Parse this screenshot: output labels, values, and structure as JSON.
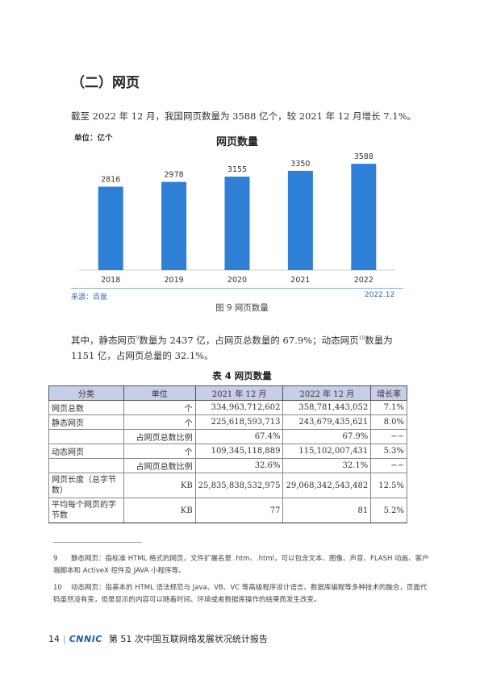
{
  "heading": "（二）网页",
  "intro": "截至 2022 年 12 月，我国网页数量为 3588 亿个，较 2021 年 12 月增长 7.1%。",
  "chart_data": {
    "type": "bar",
    "title": "网页数量",
    "unit_label": "单位：亿个",
    "categories": [
      "2018",
      "2019",
      "2020",
      "2021",
      "2022"
    ],
    "values": [
      2816,
      2978,
      3155,
      3350,
      3588
    ],
    "ylim": [
      0,
      4000
    ],
    "bar_color": "#2e7fd6",
    "grid": false
  },
  "source_left": "来源：百度",
  "source_right": "2022.12",
  "figure_caption": "图 9  网页数量",
  "para2_line1_a": "其中，静态网页",
  "para2_sup1": "9",
  "para2_line1_b": "数量为 2437 亿，占网页总数量的 67.9%；动态网页",
  "para2_sup2": "10",
  "para2_line1_c": "数量为",
  "para2_line2": "1151 亿，占网页总量的 32.1%。",
  "table": {
    "title": "表 4  网页数量",
    "headers": [
      "分类",
      "单位",
      "2021 年 12 月",
      "2022 年 12 月",
      "增长率"
    ],
    "rows": [
      [
        "网页总数",
        "个",
        "334,963,712,602",
        "358,781,443,052",
        "7.1%"
      ],
      [
        "静态网页",
        "个",
        "225,618,593,713",
        "243,679,435,621",
        "8.0%"
      ],
      [
        "",
        "占网页总数比例",
        "67.4%",
        "67.9%",
        "−−"
      ],
      [
        "动态网页",
        "个",
        "109,345,118,889",
        "115,102,007,431",
        "5.3%"
      ],
      [
        "",
        "占网页总数比例",
        "32.6%",
        "32.1%",
        "−−"
      ],
      [
        "网页长度（总字节数）",
        "KB",
        "25,835,838,532,975",
        "29,068,342,543,482",
        "12.5%"
      ],
      [
        "平均每个网页的字节数",
        "KB",
        "77",
        "81",
        "5.2%"
      ]
    ]
  },
  "footnotes": [
    {
      "num": "9",
      "text": "静态网页：指标准 HTML 格式的网页，文件扩展名是 .htm、.html，可以包含文本、图像、声音、FLASH 动画、客户端脚本和 ActiveX 控件及 JAVA 小程序等。"
    },
    {
      "num": "10",
      "text": "动态网页：指基本的 HTML 语法规范与 Java、VB、VC 等高级程序设计语言、数据库编程等多种技术的融合，页面代码虽然没有变，但是显示的内容可以随着时间、环境或者数据库操作的结果而发生改变。"
    }
  ],
  "footer": {
    "page": "14",
    "logo": "CNNIC",
    "report": "第 51 次中国互联网络发展状况统计报告"
  }
}
